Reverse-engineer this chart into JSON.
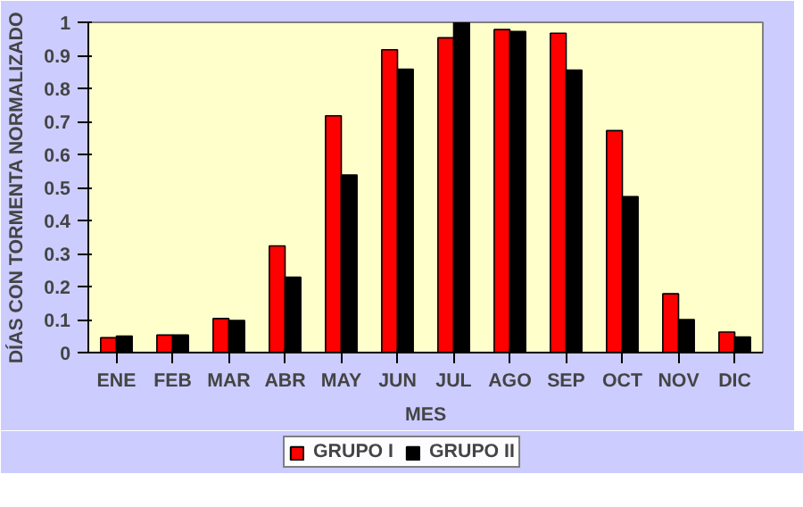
{
  "chart_data": {
    "type": "bar",
    "xlabel": "MES",
    "ylabel": "DÍAS CON TORMENTA NORMALIZADO",
    "categories": [
      "ENE",
      "FEB",
      "MAR",
      "ABR",
      "MAY",
      "JUN",
      "JUL",
      "AGO",
      "SEP",
      "OCT",
      "NOV",
      "DIC"
    ],
    "series": [
      {
        "name": "GRUPO I",
        "color": "#ff0000",
        "values": [
          0.045,
          0.053,
          0.103,
          0.323,
          0.717,
          0.917,
          0.953,
          0.978,
          0.967,
          0.672,
          0.178,
          0.062
        ]
      },
      {
        "name": "GRUPO II",
        "color": "#000000",
        "values": [
          0.05,
          0.053,
          0.097,
          0.228,
          0.538,
          0.858,
          1.0,
          0.972,
          0.855,
          0.472,
          0.1,
          0.047
        ]
      }
    ],
    "ylim": [
      0,
      1
    ],
    "yticks": [
      0,
      0.1,
      0.2,
      0.3,
      0.4,
      0.5,
      0.6,
      0.7,
      0.8,
      0.9,
      1
    ],
    "grid": false,
    "legend": "bottom"
  }
}
